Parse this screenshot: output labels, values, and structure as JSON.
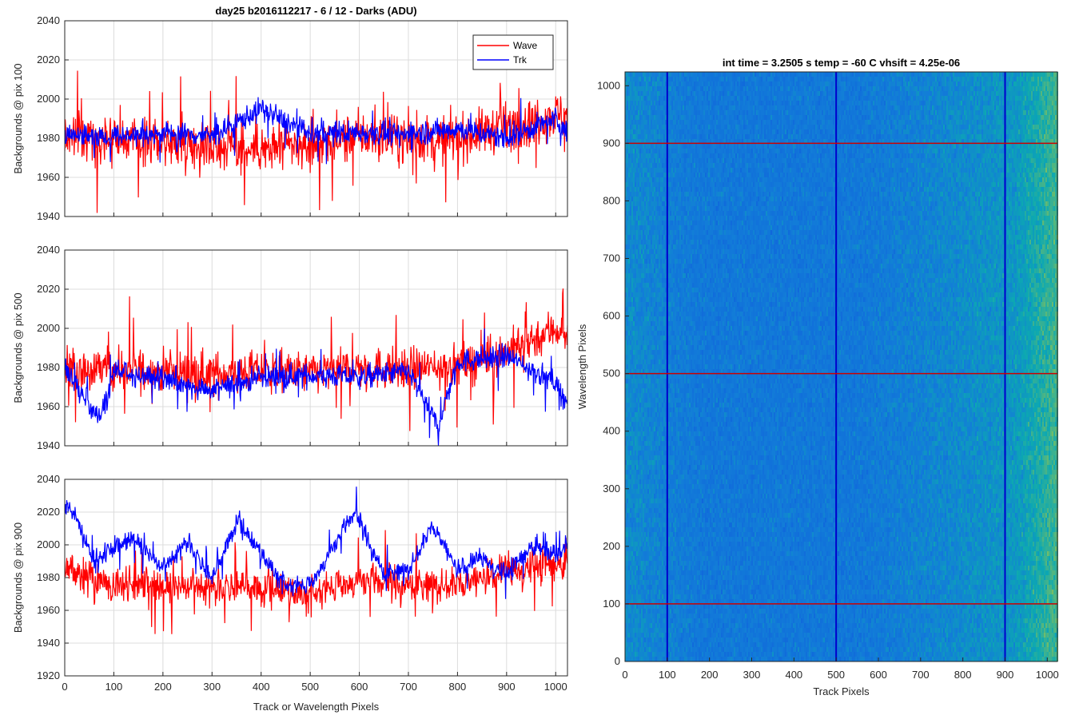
{
  "chart_data": [
    {
      "type": "line",
      "title": "day25 b2016112217 - 6 / 12 - Darks (ADU)",
      "xlabel": "",
      "ylabel": "Backgrounds @ pix 100",
      "xlim": [
        0,
        1024
      ],
      "ylim": [
        1940,
        2040
      ],
      "xticks": [
        0,
        100,
        200,
        300,
        400,
        500,
        600,
        700,
        800,
        900,
        1000
      ],
      "yticks": [
        1940,
        1960,
        1980,
        2000,
        2020,
        2040
      ],
      "grid": true,
      "legend": "top-right",
      "series": [
        {
          "name": "Wave",
          "color": "#ff0000",
          "mean": 1980,
          "noise": 10,
          "x": [
            0,
            100,
            200,
            300,
            400,
            500,
            600,
            700,
            800,
            900,
            1000,
            1024
          ],
          "trend": [
            1981,
            1980,
            1978,
            1976,
            1974,
            1976,
            1981,
            1979,
            1980,
            1986,
            1992,
            1992
          ]
        },
        {
          "name": "Trk",
          "color": "#0000ff",
          "mean": 1982,
          "noise": 5,
          "x": [
            0,
            100,
            200,
            300,
            400,
            500,
            600,
            700,
            800,
            900,
            1000,
            1024
          ],
          "trend": [
            1982,
            1981,
            1983,
            1981,
            1995,
            1982,
            1983,
            1982,
            1985,
            1980,
            1990,
            1983
          ]
        }
      ]
    },
    {
      "type": "line",
      "title": "",
      "xlabel": "",
      "ylabel": "Backgrounds @ pix 500",
      "xlim": [
        0,
        1024
      ],
      "ylim": [
        1940,
        2040
      ],
      "xticks": [
        0,
        100,
        200,
        300,
        400,
        500,
        600,
        700,
        800,
        900,
        1000
      ],
      "yticks": [
        1940,
        1960,
        1980,
        2000,
        2020,
        2040
      ],
      "grid": true,
      "series": [
        {
          "color": "#ff0000",
          "mean": 1978,
          "noise": 9,
          "x": [
            0,
            100,
            200,
            300,
            400,
            500,
            600,
            700,
            800,
            900,
            1000,
            1024
          ],
          "trend": [
            1980,
            1979,
            1978,
            1977,
            1978,
            1977,
            1980,
            1979,
            1981,
            1988,
            2000,
            1996
          ]
        },
        {
          "color": "#0000ff",
          "mean": 1975,
          "noise": 5,
          "x": [
            0,
            70,
            100,
            200,
            300,
            400,
            500,
            600,
            700,
            760,
            800,
            900,
            1000,
            1024
          ],
          "trend": [
            1980,
            1952,
            1978,
            1974,
            1968,
            1975,
            1976,
            1975,
            1978,
            1950,
            1983,
            1986,
            1972,
            1962
          ]
        }
      ]
    },
    {
      "type": "line",
      "title": "",
      "xlabel": "Track or Wavelength Pixels",
      "ylabel": "Backgrounds @ pix 900",
      "xlim": [
        0,
        1024
      ],
      "ylim": [
        1920,
        2040
      ],
      "xticks": [
        0,
        100,
        200,
        300,
        400,
        500,
        600,
        700,
        800,
        900,
        1000
      ],
      "yticks": [
        1920,
        1940,
        1960,
        1980,
        2000,
        2020,
        2040
      ],
      "grid": true,
      "series": [
        {
          "color": "#ff0000",
          "mean": 1978,
          "noise": 9,
          "x": [
            0,
            100,
            200,
            300,
            400,
            500,
            600,
            700,
            800,
            900,
            1000,
            1024
          ],
          "trend": [
            1985,
            1976,
            1975,
            1973,
            1974,
            1970,
            1978,
            1975,
            1976,
            1984,
            1990,
            1990
          ]
        },
        {
          "color": "#0000ff",
          "mean": 1990,
          "noise": 5,
          "x": [
            0,
            20,
            60,
            140,
            200,
            250,
            300,
            350,
            400,
            450,
            500,
            590,
            650,
            700,
            750,
            800,
            850,
            900,
            950,
            1000,
            1024
          ],
          "trend": [
            2025,
            2018,
            1990,
            2005,
            1985,
            2002,
            1978,
            2015,
            1995,
            1975,
            1975,
            2020,
            1982,
            1985,
            2012,
            1985,
            1992,
            1982,
            2000,
            1995,
            2000
          ]
        }
      ]
    },
    {
      "type": "heatmap",
      "title": "int time = 3.2505 s   temp = -60 C   vhsift = 4.25e-06",
      "xlabel": "Track Pixels",
      "ylabel": "Wavelength Pixels",
      "xlim": [
        0,
        1024
      ],
      "ylim": [
        0,
        1024
      ],
      "xticks": [
        0,
        100,
        200,
        300,
        400,
        500,
        600,
        700,
        800,
        900,
        1000
      ],
      "yticks": [
        0,
        100,
        200,
        300,
        400,
        500,
        600,
        700,
        800,
        900,
        1000
      ],
      "colormap": "parula",
      "vlines": {
        "values": [
          100,
          500,
          900
        ],
        "color": "#0000cc"
      },
      "hlines": {
        "values": [
          100,
          500,
          900
        ],
        "color": "#cc0000"
      }
    }
  ]
}
